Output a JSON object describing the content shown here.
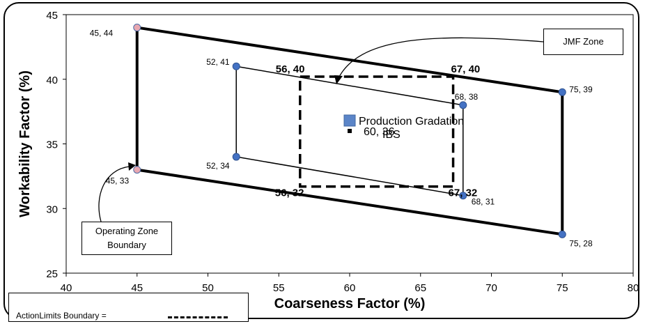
{
  "chart_data": {
    "type": "scatter",
    "xlabel": "Coarseness Factor (%)",
    "ylabel": "Workability Factor (%)",
    "xlim": [
      40,
      80
    ],
    "ylim": [
      25,
      45
    ],
    "x_ticks": [
      "40",
      "45",
      "50",
      "55",
      "60",
      "65",
      "70",
      "75",
      "80"
    ],
    "y_ticks": [
      "25",
      "30",
      "35",
      "40",
      "45"
    ],
    "grid": false,
    "series": [
      {
        "name": "Operating Zone Boundary",
        "style": "thick-solid",
        "points": [
          {
            "x": 45,
            "y": 44,
            "label": "45, 44"
          },
          {
            "x": 75,
            "y": 39,
            "label": "75, 39"
          },
          {
            "x": 75,
            "y": 28,
            "label": "75, 28"
          },
          {
            "x": 45,
            "y": 33,
            "label": "45, 33"
          }
        ]
      },
      {
        "name": "JMF Zone",
        "style": "thin-solid",
        "points": [
          {
            "x": 52,
            "y": 41,
            "label": "52, 41"
          },
          {
            "x": 68,
            "y": 38,
            "label": "68, 38"
          },
          {
            "x": 68,
            "y": 31,
            "label": "68, 31"
          },
          {
            "x": 52,
            "y": 34,
            "label": "52, 34"
          }
        ]
      },
      {
        "name": "ActionLimits Boundary",
        "style": "thick-dashed",
        "points": [
          {
            "x": 56.5,
            "y": 40.2,
            "label": "56, 40"
          },
          {
            "x": 67.3,
            "y": 40.2,
            "label": "67, 40"
          },
          {
            "x": 67.3,
            "y": 31.7,
            "label": "67, 32"
          },
          {
            "x": 56.5,
            "y": 31.7,
            "label": "56, 32"
          }
        ]
      },
      {
        "name": "Production Gradation",
        "style": "marker",
        "points": [
          {
            "x": 60,
            "y": 36,
            "label": "60, 36"
          }
        ]
      }
    ],
    "legend": {
      "position": "center",
      "entry_text": "Production Gradation",
      "overlap_label": "IBS"
    },
    "annotations": {
      "jmf_zone": "JMF Zone",
      "operating_zone": "Operating Zone Boundary",
      "action_limits": "ActionLimits Boundary ="
    }
  }
}
